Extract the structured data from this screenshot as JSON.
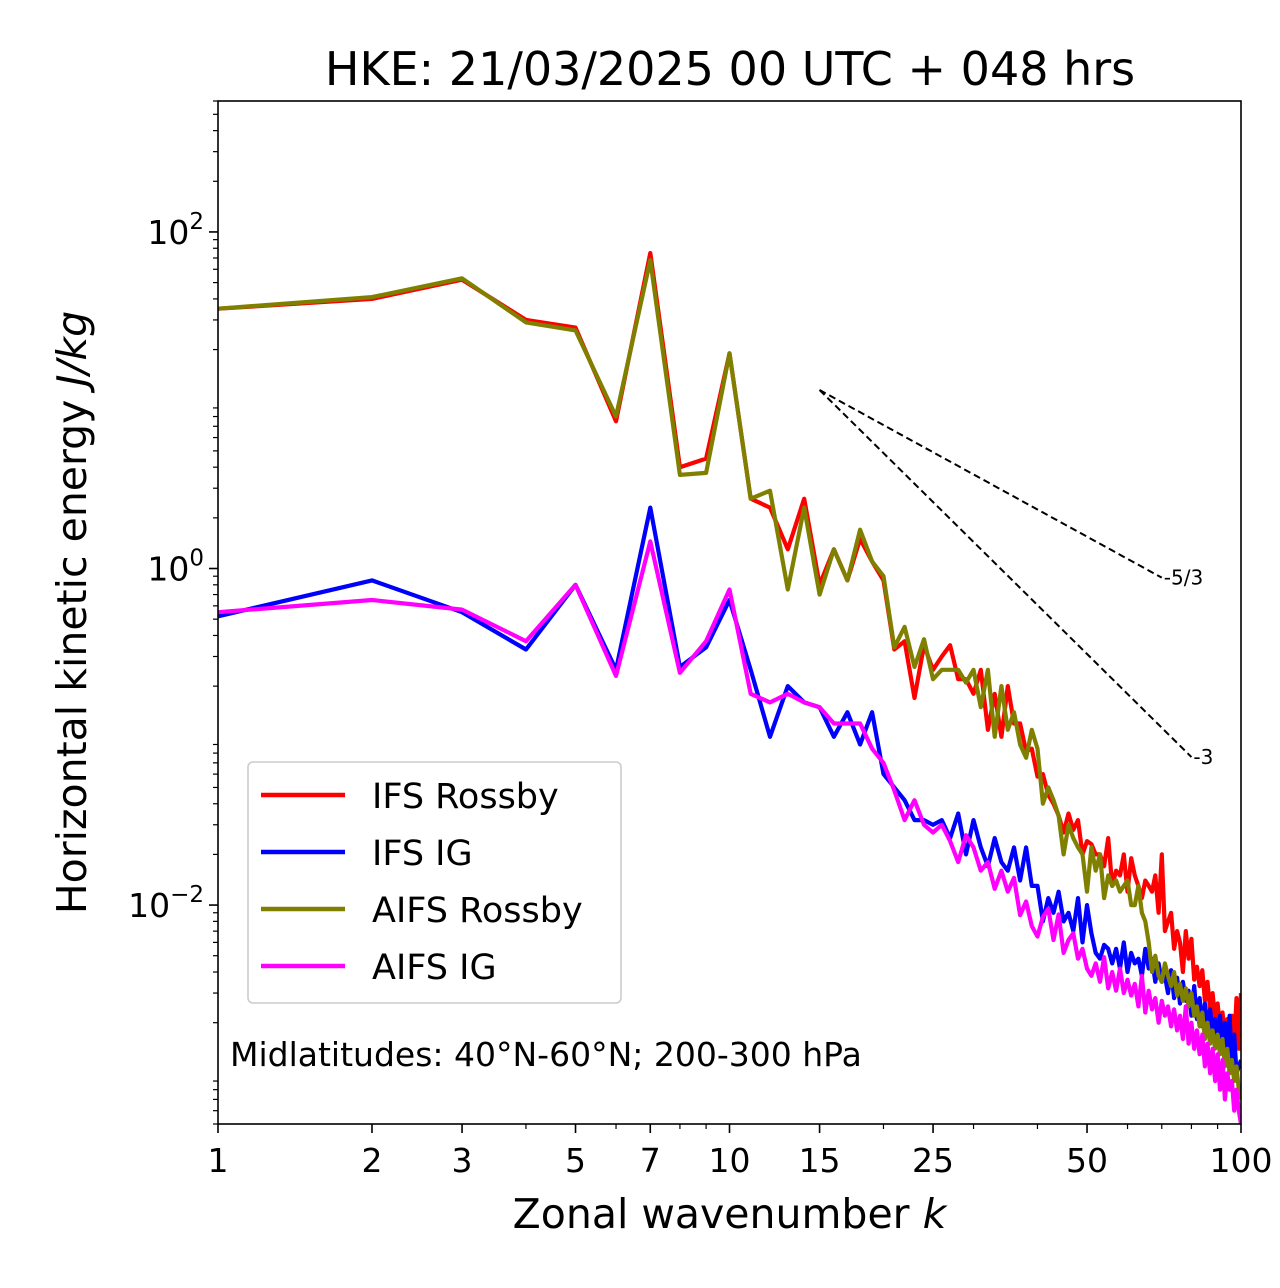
{
  "chart_data": {
    "type": "line",
    "title": "HKE: 21/03/2025 00 UTC + 048 hrs",
    "xlabel": "Zonal wavenumber k",
    "ylabel": "Horizontal kinetic energy J/kg",
    "xscale": "log",
    "yscale": "log",
    "xlim": [
      1,
      100
    ],
    "ylim": [
      0.0005,
      600
    ],
    "x_ticks": [
      1,
      2,
      3,
      5,
      7,
      10,
      15,
      25,
      50,
      100
    ],
    "x_tick_labels": [
      "1",
      "2",
      "3",
      "5",
      "7",
      "10",
      "15",
      "25",
      "50",
      "100"
    ],
    "y_ticks": [
      0.01,
      1,
      100
    ],
    "y_tick_labels": [
      "10^-2",
      "10^0",
      "10^2"
    ],
    "grid": false,
    "legend_position": "lower-left",
    "annotation": "Midlatitudes: 40°N-60°N; 200-300 hPa",
    "reference_lines": [
      {
        "label": "-5/3",
        "slope": -1.6667,
        "x_start": 15,
        "x_end": 70,
        "y_start": 11.5
      },
      {
        "label": "-3",
        "slope": -3,
        "x_start": 15,
        "x_end": 80,
        "y_start": 11.5
      }
    ],
    "series": [
      {
        "name": "IFS Rossby",
        "color": "#ff0000",
        "x": [
          1,
          2,
          3,
          4,
          5,
          6,
          7,
          8,
          9,
          10,
          11,
          12,
          13,
          14,
          15,
          16,
          17,
          18,
          19,
          20,
          21,
          22,
          23,
          24,
          25,
          26,
          27,
          28,
          29,
          30,
          31,
          32,
          33,
          34,
          35,
          36,
          37,
          38,
          39,
          40,
          41,
          42,
          43,
          44,
          45,
          46,
          47,
          48,
          49,
          50,
          51,
          52,
          53,
          54,
          55,
          56,
          57,
          58,
          59,
          60,
          61,
          62,
          63,
          64,
          65,
          66,
          67,
          68,
          69,
          70,
          71,
          72,
          73,
          74,
          75,
          76,
          77,
          78,
          79,
          80,
          81,
          82,
          83,
          84,
          85,
          86,
          87,
          88,
          89,
          90,
          91,
          92,
          93,
          94,
          95,
          96,
          97,
          98,
          99,
          100
        ],
        "y": [
          35,
          40,
          52,
          30,
          27,
          7.5,
          75,
          4.0,
          4.5,
          19,
          2.6,
          2.3,
          1.3,
          2.6,
          0.8,
          1.3,
          0.85,
          1.5,
          1.1,
          0.85,
          0.33,
          0.37,
          0.17,
          0.35,
          0.25,
          0.3,
          0.35,
          0.22,
          0.22,
          0.18,
          0.25,
          0.11,
          0.18,
          0.1,
          0.2,
          0.12,
          0.12,
          0.082,
          0.085,
          0.058,
          0.06,
          0.045,
          0.04,
          0.034,
          0.027,
          0.035,
          0.028,
          0.032,
          0.02,
          0.024,
          0.023,
          0.02,
          0.02,
          0.017,
          0.025,
          0.013,
          0.016,
          0.015,
          0.02,
          0.012,
          0.019,
          0.015,
          0.013,
          0.011,
          0.014,
          0.013,
          0.012,
          0.015,
          0.009,
          0.02,
          0.007,
          0.008,
          0.009,
          0.0055,
          0.007,
          0.006,
          0.004,
          0.007,
          0.0048,
          0.0063,
          0.0036,
          0.0043,
          0.0033,
          0.0041,
          0.0027,
          0.0035,
          0.0024,
          0.003,
          0.0021,
          0.0026,
          0.0019,
          0.0023,
          0.0017,
          0.0021,
          0.0018,
          0.0022,
          0.0015,
          0.0028,
          0.0014,
          0.003
        ]
      },
      {
        "name": "IFS IG",
        "color": "#0000ff",
        "x": [
          1,
          2,
          3,
          4,
          5,
          6,
          7,
          8,
          9,
          10,
          11,
          12,
          13,
          14,
          15,
          16,
          17,
          18,
          19,
          20,
          21,
          22,
          23,
          24,
          25,
          26,
          27,
          28,
          29,
          30,
          31,
          32,
          33,
          34,
          35,
          36,
          37,
          38,
          39,
          40,
          41,
          42,
          43,
          44,
          45,
          46,
          47,
          48,
          49,
          50,
          51,
          52,
          53,
          54,
          55,
          56,
          57,
          58,
          59,
          60,
          61,
          62,
          63,
          64,
          65,
          66,
          67,
          68,
          69,
          70,
          71,
          72,
          73,
          74,
          75,
          76,
          77,
          78,
          79,
          80,
          81,
          82,
          83,
          84,
          85,
          86,
          87,
          88,
          89,
          90,
          91,
          92,
          93,
          94,
          95,
          96,
          97,
          98,
          99,
          100
        ],
        "y": [
          0.52,
          0.85,
          0.55,
          0.33,
          0.8,
          0.25,
          2.3,
          0.26,
          0.34,
          0.65,
          0.25,
          0.1,
          0.2,
          0.16,
          0.15,
          0.1,
          0.14,
          0.09,
          0.14,
          0.06,
          0.05,
          0.042,
          0.032,
          0.032,
          0.03,
          0.032,
          0.025,
          0.035,
          0.02,
          0.032,
          0.022,
          0.017,
          0.025,
          0.018,
          0.016,
          0.022,
          0.014,
          0.022,
          0.013,
          0.013,
          0.008,
          0.011,
          0.009,
          0.012,
          0.008,
          0.009,
          0.007,
          0.011,
          0.006,
          0.01,
          0.0068,
          0.0052,
          0.0048,
          0.0058,
          0.0055,
          0.0045,
          0.0055,
          0.0042,
          0.006,
          0.004,
          0.0052,
          0.0045,
          0.0048,
          0.0038,
          0.0055,
          0.0042,
          0.0048,
          0.0035,
          0.0045,
          0.0035,
          0.0038,
          0.003,
          0.0041,
          0.0028,
          0.0037,
          0.0026,
          0.0035,
          0.0027,
          0.0031,
          0.0022,
          0.0033,
          0.0021,
          0.0028,
          0.0019,
          0.0026,
          0.0019,
          0.0024,
          0.0018,
          0.0021,
          0.0016,
          0.0022,
          0.0014,
          0.002,
          0.0013,
          0.0022,
          0.0011,
          0.0017,
          0.001,
          0.0011,
          0.0012
        ]
      },
      {
        "name": "AIFS Rossby",
        "color": "#808000",
        "x": [
          1,
          2,
          3,
          4,
          5,
          6,
          7,
          8,
          9,
          10,
          11,
          12,
          13,
          14,
          15,
          16,
          17,
          18,
          19,
          20,
          21,
          22,
          23,
          24,
          25,
          26,
          27,
          28,
          29,
          30,
          31,
          32,
          33,
          34,
          35,
          36,
          37,
          38,
          39,
          40,
          41,
          42,
          43,
          44,
          45,
          46,
          47,
          48,
          49,
          50,
          51,
          52,
          53,
          54,
          55,
          56,
          57,
          58,
          59,
          60,
          61,
          62,
          63,
          64,
          65,
          66,
          67,
          68,
          69,
          70,
          71,
          72,
          73,
          74,
          75,
          76,
          77,
          78,
          79,
          80,
          81,
          82,
          83,
          84,
          85,
          86,
          87,
          88,
          89,
          90,
          91,
          92,
          93,
          94,
          95,
          96,
          97,
          98,
          99,
          100
        ],
        "y": [
          35,
          41,
          53,
          29,
          26,
          8.0,
          68,
          3.6,
          3.7,
          19,
          2.6,
          2.9,
          0.75,
          2.3,
          0.7,
          1.3,
          0.85,
          1.7,
          1.1,
          0.9,
          0.34,
          0.45,
          0.26,
          0.38,
          0.22,
          0.25,
          0.25,
          0.25,
          0.21,
          0.25,
          0.15,
          0.25,
          0.1,
          0.2,
          0.11,
          0.14,
          0.09,
          0.075,
          0.11,
          0.085,
          0.04,
          0.05,
          0.042,
          0.034,
          0.02,
          0.03,
          0.025,
          0.022,
          0.02,
          0.012,
          0.022,
          0.016,
          0.02,
          0.011,
          0.015,
          0.013,
          0.014,
          0.012,
          0.013,
          0.014,
          0.01,
          0.01,
          0.013,
          0.009,
          0.008,
          0.006,
          0.004,
          0.005,
          0.0038,
          0.0035,
          0.0045,
          0.0038,
          0.0033,
          0.004,
          0.0029,
          0.0034,
          0.0027,
          0.0032,
          0.0025,
          0.003,
          0.0022,
          0.0025,
          0.0019,
          0.0023,
          0.0016,
          0.002,
          0.0015,
          0.0018,
          0.0014,
          0.0017,
          0.0013,
          0.0016,
          0.0011,
          0.0014,
          0.001,
          0.0012,
          0.0009,
          0.0011,
          0.0008,
          0.0007
        ]
      },
      {
        "name": "AIFS IG",
        "color": "#ff00ff",
        "x": [
          1,
          2,
          3,
          4,
          5,
          6,
          7,
          8,
          9,
          10,
          11,
          12,
          13,
          14,
          15,
          16,
          17,
          18,
          19,
          20,
          21,
          22,
          23,
          24,
          25,
          26,
          27,
          28,
          29,
          30,
          31,
          32,
          33,
          34,
          35,
          36,
          37,
          38,
          39,
          40,
          41,
          42,
          43,
          44,
          45,
          46,
          47,
          48,
          49,
          50,
          51,
          52,
          53,
          54,
          55,
          56,
          57,
          58,
          59,
          60,
          61,
          62,
          63,
          64,
          65,
          66,
          67,
          68,
          69,
          70,
          71,
          72,
          73,
          74,
          75,
          76,
          77,
          78,
          79,
          80,
          81,
          82,
          83,
          84,
          85,
          86,
          87,
          88,
          89,
          90,
          91,
          92,
          93,
          94,
          95,
          96,
          97,
          98,
          99,
          100
        ],
        "y": [
          0.55,
          0.65,
          0.57,
          0.37,
          0.8,
          0.23,
          1.45,
          0.24,
          0.37,
          0.75,
          0.18,
          0.16,
          0.18,
          0.16,
          0.15,
          0.12,
          0.12,
          0.12,
          0.085,
          0.07,
          0.048,
          0.032,
          0.042,
          0.03,
          0.027,
          0.03,
          0.024,
          0.018,
          0.026,
          0.022,
          0.016,
          0.018,
          0.0125,
          0.016,
          0.012,
          0.0145,
          0.0087,
          0.0105,
          0.0075,
          0.0065,
          0.0085,
          0.0095,
          0.0062,
          0.0088,
          0.0052,
          0.0062,
          0.0068,
          0.0048,
          0.0055,
          0.0042,
          0.0038,
          0.0045,
          0.0035,
          0.0049,
          0.0032,
          0.004,
          0.0031,
          0.0042,
          0.003,
          0.0036,
          0.0029,
          0.0034,
          0.0025,
          0.0038,
          0.0023,
          0.0031,
          0.0024,
          0.0028,
          0.002,
          0.0027,
          0.0022,
          0.0025,
          0.0019,
          0.0024,
          0.0018,
          0.0022,
          0.0016,
          0.0025,
          0.0015,
          0.002,
          0.0014,
          0.0018,
          0.0013,
          0.0017,
          0.0011,
          0.0015,
          0.001,
          0.0014,
          0.0009,
          0.0013,
          0.0008,
          0.0012,
          0.0007,
          0.001,
          0.0008,
          0.0009,
          0.0006,
          0.0008,
          0.0006,
          0.0005
        ]
      }
    ]
  }
}
